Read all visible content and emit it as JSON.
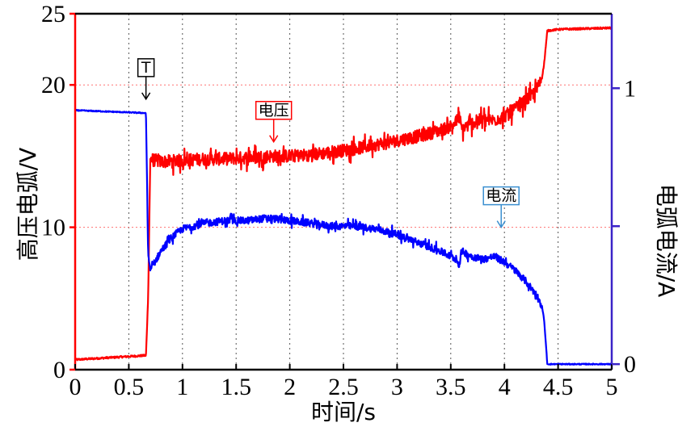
{
  "chart_data": {
    "type": "line",
    "xlabel": "时间/s",
    "ylabel_left": "高压电弧/V",
    "ylabel_right": "电弧电流/A",
    "x_ticks": [
      "0",
      "0.5",
      "1",
      "1.5",
      "2",
      "2.5",
      "3",
      "3.5",
      "4",
      "4.5",
      "5"
    ],
    "y_left_ticks": [
      "0",
      "10",
      "20",
      "25"
    ],
    "y_right_ticks": [
      "0",
      "1"
    ],
    "xlim": [
      0,
      5
    ],
    "ylim_left": [
      0,
      25
    ],
    "ylim_right": [
      -0.02,
      1.27
    ],
    "grid": true,
    "series": [
      {
        "name": "电压",
        "axis": "left",
        "color": "#ff0000",
        "x": [
          0,
          0.66,
          0.68,
          0.7,
          0.8,
          1.0,
          1.2,
          1.4,
          1.6,
          1.8,
          2.0,
          2.2,
          2.4,
          2.6,
          2.8,
          3.0,
          3.2,
          3.4,
          3.5,
          3.55,
          3.58,
          3.6,
          3.7,
          3.8,
          3.9,
          4.0,
          4.1,
          4.2,
          4.3,
          4.35,
          4.37,
          4.4,
          4.5,
          5.0
        ],
        "y": [
          0.7,
          1.0,
          5.0,
          14.8,
          14.6,
          14.7,
          14.8,
          14.8,
          14.9,
          15.0,
          15.0,
          15.1,
          15.3,
          15.5,
          15.8,
          16.1,
          16.4,
          16.8,
          17.1,
          17.4,
          17.8,
          16.9,
          17.3,
          17.6,
          17.5,
          17.8,
          18.3,
          18.9,
          19.6,
          20.5,
          21.5,
          23.8,
          23.9,
          24.0
        ],
        "noise": 0.45
      },
      {
        "name": "电流",
        "axis": "right",
        "color": "#0000ff",
        "x": [
          0,
          0.66,
          0.68,
          0.7,
          0.8,
          0.9,
          1.0,
          1.2,
          1.4,
          1.6,
          1.8,
          2.0,
          2.2,
          2.4,
          2.6,
          2.8,
          3.0,
          3.2,
          3.4,
          3.5,
          3.55,
          3.58,
          3.6,
          3.7,
          3.8,
          3.9,
          4.0,
          4.1,
          4.2,
          4.3,
          4.35,
          4.37,
          4.4,
          4.5,
          5.0
        ],
        "y": [
          0.92,
          0.91,
          0.4,
          0.34,
          0.41,
          0.46,
          0.49,
          0.51,
          0.52,
          0.52,
          0.53,
          0.52,
          0.51,
          0.5,
          0.5,
          0.49,
          0.47,
          0.44,
          0.41,
          0.39,
          0.38,
          0.36,
          0.41,
          0.39,
          0.38,
          0.39,
          0.37,
          0.34,
          0.3,
          0.25,
          0.21,
          0.16,
          0.0,
          0.0,
          0.0
        ],
        "noise": 0.013
      }
    ],
    "annotations": [
      {
        "label": "T",
        "x": 0.66,
        "y_left": 19.0,
        "color": "#000000"
      },
      {
        "label": "电压",
        "x": 1.85,
        "y_left": 16.0,
        "color": "#ff0000"
      },
      {
        "label": "电流",
        "x": 3.97,
        "y_left": 10.0,
        "color": "#3a8fd0"
      }
    ]
  }
}
